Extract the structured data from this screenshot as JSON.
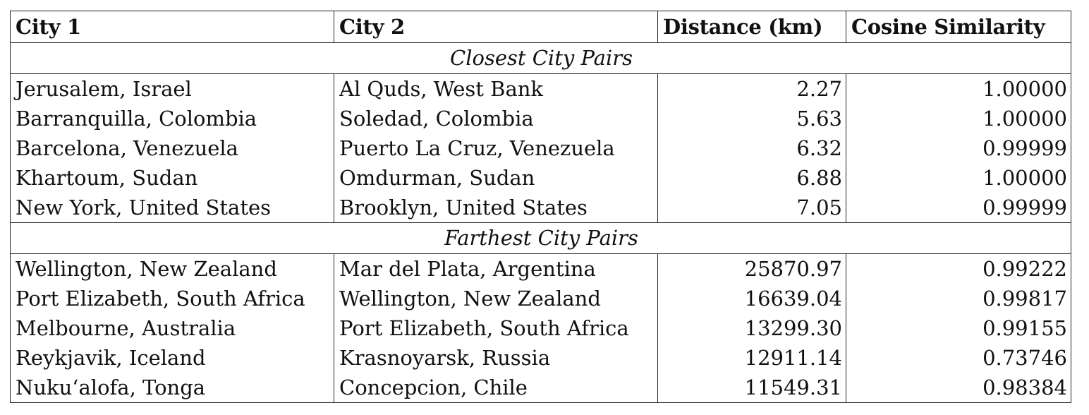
{
  "headers": {
    "city1": "City 1",
    "city2": "City 2",
    "distance": "Distance (km)",
    "cosine": "Cosine Similarity"
  },
  "sections": [
    {
      "title": "Closest City Pairs",
      "rows": [
        {
          "city1": "Jerusalem, Israel",
          "city2": "Al Quds, West Bank",
          "distance": "2.27",
          "cosine": "1.00000"
        },
        {
          "city1": "Barranquilla, Colombia",
          "city2": "Soledad, Colombia",
          "distance": "5.63",
          "cosine": "1.00000"
        },
        {
          "city1": "Barcelona, Venezuela",
          "city2": "Puerto La Cruz, Venezuela",
          "distance": "6.32",
          "cosine": "0.99999"
        },
        {
          "city1": "Khartoum, Sudan",
          "city2": "Omdurman, Sudan",
          "distance": "6.88",
          "cosine": "1.00000"
        },
        {
          "city1": "New York, United States",
          "city2": "Brooklyn, United States",
          "distance": "7.05",
          "cosine": "0.99999"
        }
      ]
    },
    {
      "title": "Farthest City Pairs",
      "rows": [
        {
          "city1": "Wellington, New Zealand",
          "city2": "Mar del Plata, Argentina",
          "distance": "25870.97",
          "cosine": "0.99222"
        },
        {
          "city1": "Port Elizabeth, South Africa",
          "city2": "Wellington, New Zealand",
          "distance": "16639.04",
          "cosine": "0.99817"
        },
        {
          "city1": "Melbourne, Australia",
          "city2": "Port Elizabeth, South Africa",
          "distance": "13299.30",
          "cosine": "0.99155"
        },
        {
          "city1": "Reykjavik, Iceland",
          "city2": "Krasnoyarsk, Russia",
          "distance": "12911.14",
          "cosine": "0.73746"
        },
        {
          "city1": "Nuku‘alofa, Tonga",
          "city2": "Concepcion, Chile",
          "distance": "11549.31",
          "cosine": "0.98384"
        }
      ]
    }
  ]
}
